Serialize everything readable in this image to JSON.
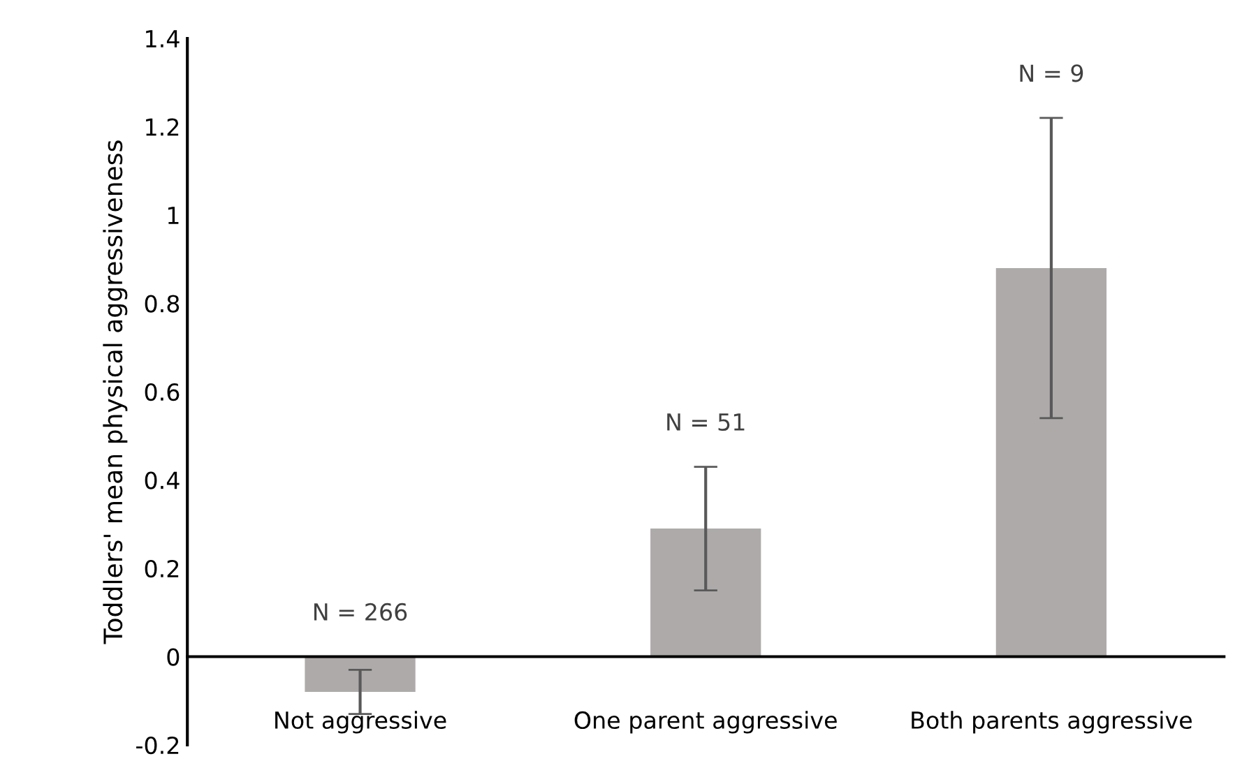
{
  "chart_data": {
    "type": "bar",
    "ylabel": "Toddlers' mean physical aggressiveness",
    "categories": [
      "Not aggressive",
      "One parent aggressive",
      "Both parents aggressive"
    ],
    "values": [
      -0.08,
      0.29,
      0.88
    ],
    "errors": [
      0.05,
      0.14,
      0.34
    ],
    "color": "#aeaaaa",
    "ylim": [
      -0.2,
      1.4
    ],
    "yticks": [
      -0.2,
      0,
      0.2,
      0.4,
      0.6,
      0.8,
      1,
      1.2,
      1.4
    ],
    "annotations": [
      "N = 266",
      "N = 51",
      "N = 9"
    ],
    "grid": false,
    "legend": false
  }
}
